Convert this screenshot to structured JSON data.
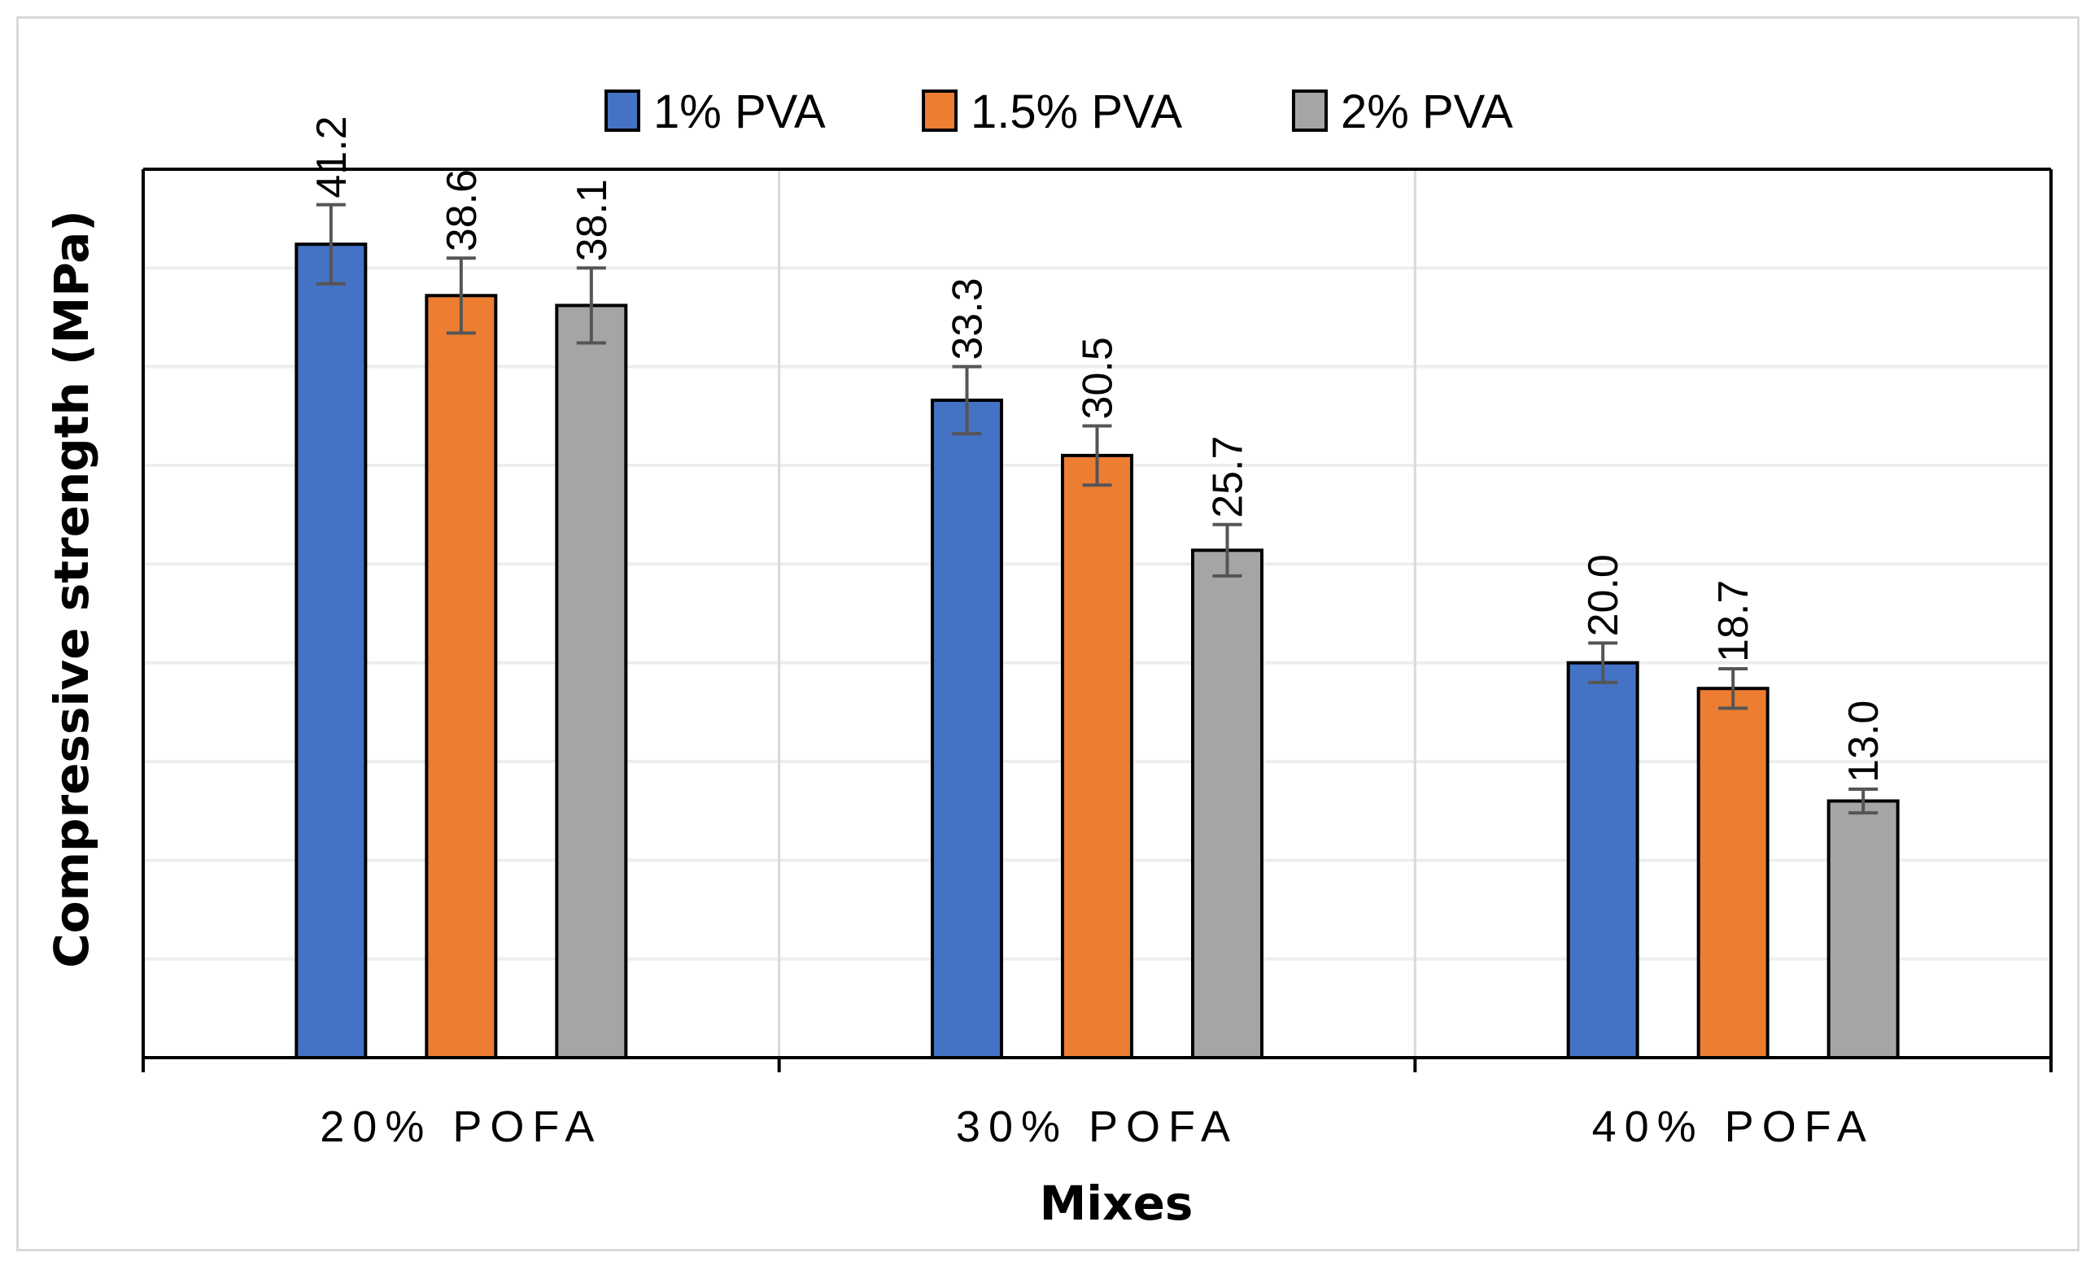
{
  "chart_data": {
    "type": "bar",
    "title": "",
    "xlabel": "Mixes",
    "ylabel": "Compressive strength (MPa)",
    "ylim": [
      0,
      45
    ],
    "grid": true,
    "legend_position": "top",
    "categories": [
      "20% POFA",
      "30% POFA",
      "40% POFA"
    ],
    "series": [
      {
        "name": "1% PVA",
        "color": "#4472c4",
        "values": [
          41.2,
          33.3,
          20.0
        ],
        "labels": [
          "41.2",
          "33.3",
          "20.0"
        ],
        "errors": [
          2.0,
          1.7,
          1.0
        ]
      },
      {
        "name": "1.5% PVA",
        "color": "#ed7d31",
        "values": [
          38.6,
          30.5,
          18.7
        ],
        "labels": [
          "38.6",
          "30.5",
          "18.7"
        ],
        "errors": [
          1.9,
          1.5,
          1.0
        ]
      },
      {
        "name": "2% PVA",
        "color": "#a5a5a5",
        "values": [
          38.1,
          25.7,
          13.0
        ],
        "labels": [
          "38.1",
          "25.7",
          "13.0"
        ],
        "errors": [
          1.9,
          1.3,
          0.6
        ]
      }
    ]
  }
}
